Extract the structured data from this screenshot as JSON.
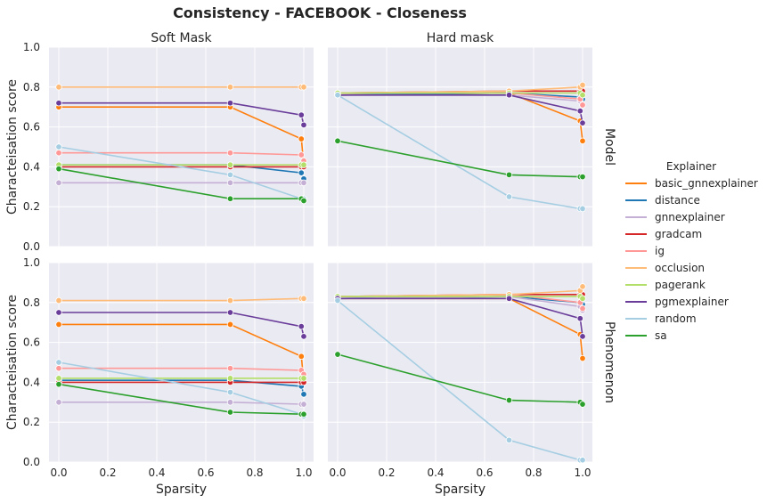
{
  "title": "Consistency - FACEBOOK - Closeness",
  "chart_data": {
    "type": "line",
    "col_titles": [
      "Soft Mask",
      "Hard mask"
    ],
    "row_titles": [
      "Model",
      "Phenomenon"
    ],
    "xlabel": "Sparsity",
    "ylabel": "Characteisation score",
    "xlim": [
      -0.04,
      1.04
    ],
    "ylim": [
      0.0,
      1.0
    ],
    "xticks": [
      "0.0",
      "0.2",
      "0.4",
      "0.6",
      "0.8",
      "1.0"
    ],
    "yticks": [
      "0.0",
      "0.2",
      "0.4",
      "0.6",
      "0.8",
      "1.0"
    ],
    "x": [
      0.0,
      0.7,
      0.99,
      1.0
    ],
    "grid": true,
    "legend": {
      "title": "Explainer",
      "placement": "right",
      "entries": [
        {
          "name": "basic_gnnexplainer",
          "color": "#ff7f0e"
        },
        {
          "name": "distance",
          "color": "#1f77b4"
        },
        {
          "name": "gnnexplainer",
          "color": "#c5b0d5"
        },
        {
          "name": "gradcam",
          "color": "#d62728"
        },
        {
          "name": "ig",
          "color": "#ff9896"
        },
        {
          "name": "occlusion",
          "color": "#ffbb78"
        },
        {
          "name": "pagerank",
          "color": "#b3de69"
        },
        {
          "name": "pgmexplainer",
          "color": "#6a3d9a"
        },
        {
          "name": "random",
          "color": "#a6cee3"
        },
        {
          "name": "sa",
          "color": "#2ca02c"
        }
      ]
    },
    "panels": [
      {
        "row": "Model",
        "col": "Soft Mask",
        "series": [
          {
            "name": "basic_gnnexplainer",
            "values": [
              0.7,
              0.7,
              0.54,
              0.41
            ]
          },
          {
            "name": "distance",
            "values": [
              0.41,
              0.41,
              0.37,
              0.34
            ]
          },
          {
            "name": "gnnexplainer",
            "values": [
              0.32,
              0.32,
              0.32,
              0.32
            ]
          },
          {
            "name": "gradcam",
            "values": [
              0.4,
              0.4,
              0.4,
              0.4
            ]
          },
          {
            "name": "ig",
            "values": [
              0.47,
              0.47,
              0.46,
              0.43
            ]
          },
          {
            "name": "occlusion",
            "values": [
              0.8,
              0.8,
              0.8,
              0.8
            ]
          },
          {
            "name": "pagerank",
            "values": [
              0.41,
              0.41,
              0.41,
              0.41
            ]
          },
          {
            "name": "pgmexplainer",
            "values": [
              0.72,
              0.72,
              0.66,
              0.61
            ]
          },
          {
            "name": "random",
            "values": [
              0.5,
              0.36,
              0.24,
              0.24
            ]
          },
          {
            "name": "sa",
            "values": [
              0.39,
              0.24,
              0.24,
              0.23
            ]
          }
        ]
      },
      {
        "row": "Model",
        "col": "Hard mask",
        "series": [
          {
            "name": "basic_gnnexplainer",
            "values": [
              0.76,
              0.77,
              0.63,
              0.53
            ]
          },
          {
            "name": "distance",
            "values": [
              0.76,
              0.77,
              0.75,
              0.74
            ]
          },
          {
            "name": "gnnexplainer",
            "values": [
              0.76,
              0.76,
              0.73,
              0.71
            ]
          },
          {
            "name": "gradcam",
            "values": [
              0.77,
              0.78,
              0.78,
              0.78
            ]
          },
          {
            "name": "ig",
            "values": [
              0.77,
              0.77,
              0.74,
              0.71
            ]
          },
          {
            "name": "occlusion",
            "values": [
              0.77,
              0.78,
              0.8,
              0.81
            ]
          },
          {
            "name": "pagerank",
            "values": [
              0.77,
              0.77,
              0.77,
              0.76
            ]
          },
          {
            "name": "pgmexplainer",
            "values": [
              0.76,
              0.76,
              0.68,
              0.62
            ]
          },
          {
            "name": "random",
            "values": [
              0.76,
              0.25,
              0.19,
              0.19
            ]
          },
          {
            "name": "sa",
            "values": [
              0.53,
              0.36,
              0.35,
              0.35
            ]
          }
        ]
      },
      {
        "row": "Phenomenon",
        "col": "Soft Mask",
        "series": [
          {
            "name": "basic_gnnexplainer",
            "values": [
              0.69,
              0.69,
              0.53,
              0.4
            ]
          },
          {
            "name": "distance",
            "values": [
              0.41,
              0.41,
              0.38,
              0.34
            ]
          },
          {
            "name": "gnnexplainer",
            "values": [
              0.3,
              0.3,
              0.29,
              0.29
            ]
          },
          {
            "name": "gradcam",
            "values": [
              0.4,
              0.4,
              0.4,
              0.4
            ]
          },
          {
            "name": "ig",
            "values": [
              0.47,
              0.47,
              0.46,
              0.44
            ]
          },
          {
            "name": "occlusion",
            "values": [
              0.81,
              0.81,
              0.82,
              0.82
            ]
          },
          {
            "name": "pagerank",
            "values": [
              0.42,
              0.42,
              0.42,
              0.42
            ]
          },
          {
            "name": "pgmexplainer",
            "values": [
              0.75,
              0.75,
              0.68,
              0.63
            ]
          },
          {
            "name": "random",
            "values": [
              0.5,
              0.35,
              0.24,
              0.23
            ]
          },
          {
            "name": "sa",
            "values": [
              0.39,
              0.25,
              0.24,
              0.24
            ]
          }
        ]
      },
      {
        "row": "Phenomenon",
        "col": "Hard mask",
        "series": [
          {
            "name": "basic_gnnexplainer",
            "values": [
              0.82,
              0.82,
              0.64,
              0.52
            ]
          },
          {
            "name": "distance",
            "values": [
              0.82,
              0.83,
              0.8,
              0.79
            ]
          },
          {
            "name": "gnnexplainer",
            "values": [
              0.82,
              0.83,
              0.78,
              0.76
            ]
          },
          {
            "name": "gradcam",
            "values": [
              0.83,
              0.84,
              0.84,
              0.84
            ]
          },
          {
            "name": "ig",
            "values": [
              0.83,
              0.84,
              0.8,
              0.77
            ]
          },
          {
            "name": "occlusion",
            "values": [
              0.83,
              0.84,
              0.86,
              0.88
            ]
          },
          {
            "name": "pagerank",
            "values": [
              0.83,
              0.83,
              0.83,
              0.82
            ]
          },
          {
            "name": "pgmexplainer",
            "values": [
              0.82,
              0.82,
              0.72,
              0.63
            ]
          },
          {
            "name": "random",
            "values": [
              0.81,
              0.11,
              0.01,
              0.01
            ]
          },
          {
            "name": "sa",
            "values": [
              0.54,
              0.31,
              0.3,
              0.29
            ]
          }
        ]
      }
    ]
  }
}
